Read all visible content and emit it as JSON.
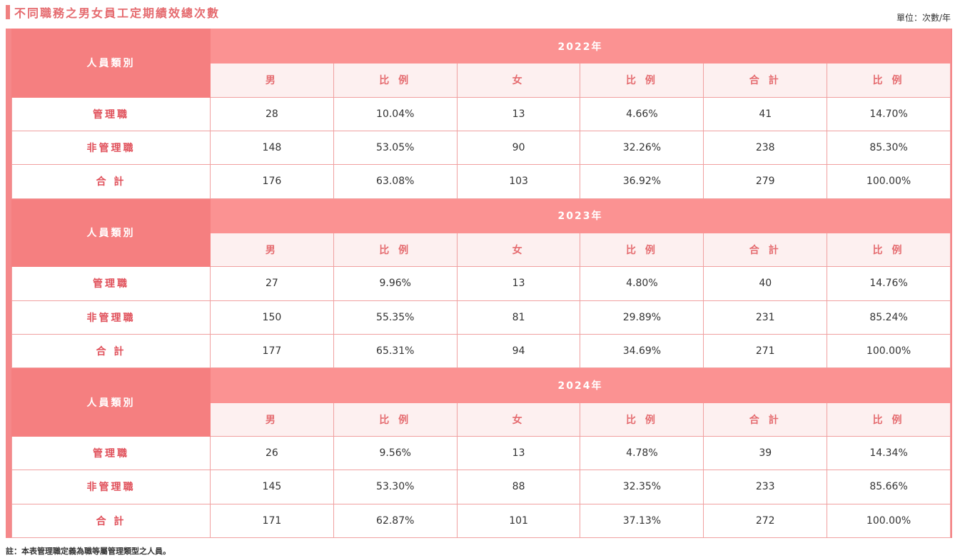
{
  "title": "不同職務之男女員工定期績效總次數",
  "unit": "單位：次數/年",
  "category_label": "人員類別",
  "sub_headers": [
    "男",
    "比 例",
    "女",
    "比 例",
    "合 計",
    "比 例"
  ],
  "years": [
    {
      "year": "2022年",
      "rows": [
        {
          "label": "管理職",
          "values": [
            "28",
            "10.04%",
            "13",
            "4.66%",
            "41",
            "14.70%"
          ]
        },
        {
          "label": "非管理職",
          "values": [
            "148",
            "53.05%",
            "90",
            "32.26%",
            "238",
            "85.30%"
          ]
        },
        {
          "label": "合 計",
          "values": [
            "176",
            "63.08%",
            "103",
            "36.92%",
            "279",
            "100.00%"
          ]
        }
      ]
    },
    {
      "year": "2023年",
      "rows": [
        {
          "label": "管理職",
          "values": [
            "27",
            "9.96%",
            "13",
            "4.80%",
            "40",
            "14.76%"
          ]
        },
        {
          "label": "非管理職",
          "values": [
            "150",
            "55.35%",
            "81",
            "29.89%",
            "231",
            "85.24%"
          ]
        },
        {
          "label": "合 計",
          "values": [
            "177",
            "65.31%",
            "94",
            "34.69%",
            "271",
            "100.00%"
          ]
        }
      ]
    },
    {
      "year": "2024年",
      "rows": [
        {
          "label": "管理職",
          "values": [
            "26",
            "9.56%",
            "13",
            "4.78%",
            "39",
            "14.34%"
          ]
        },
        {
          "label": "非管理職",
          "values": [
            "145",
            "53.30%",
            "88",
            "32.35%",
            "233",
            "85.66%"
          ]
        },
        {
          "label": "合 計",
          "values": [
            "171",
            "62.87%",
            "101",
            "37.13%",
            "272",
            "100.00%"
          ]
        }
      ]
    }
  ],
  "note": "註：本表管理職定義為職等屬管理類型之人員。"
}
